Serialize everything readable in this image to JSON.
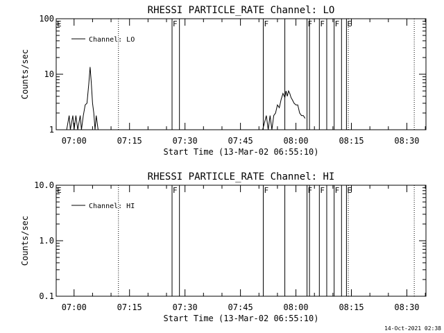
{
  "footer_timestamp": "14-Oct-2021 02:38",
  "colors": {
    "foreground": "#000000",
    "background": "#ffffff"
  },
  "chart_data": [
    {
      "type": "line",
      "title": "RHESSI PARTICLE_RATE Channel: LO",
      "xlabel": "Start Time (13-Mar-02 06:55:10)",
      "ylabel": "Counts/sec",
      "y_scale": "log",
      "ylim": [
        1,
        100
      ],
      "y_tick_labels": [
        "1",
        "10",
        "100"
      ],
      "y_tick_values": [
        1,
        10,
        100
      ],
      "xlim": [
        "06:55:10",
        "08:35:10"
      ],
      "x_tick_labels": [
        "07:00",
        "07:15",
        "07:30",
        "07:45",
        "08:00",
        "08:15",
        "08:30"
      ],
      "legend": {
        "placement": "top-left",
        "entries": [
          "Channel: LO"
        ]
      },
      "grid": false,
      "series": [
        {
          "name": "Channel: LO",
          "segments": [
            [
              [
                "06:58:00",
                1
              ],
              [
                "06:58:40",
                1.8
              ],
              [
                "06:59:00",
                1
              ],
              [
                "06:59:40",
                1.8
              ],
              [
                "07:00:00",
                1
              ],
              [
                "07:00:30",
                1.8
              ],
              [
                "07:01:00",
                1
              ],
              [
                "07:01:40",
                1.8
              ],
              [
                "07:02:00",
                1
              ],
              [
                "07:02:30",
                1.8
              ],
              [
                "07:03:00",
                2.8
              ],
              [
                "07:03:30",
                3
              ],
              [
                "07:04:00",
                7
              ],
              [
                "07:04:20",
                13.5
              ],
              [
                "07:04:40",
                7
              ],
              [
                "07:05:00",
                3
              ],
              [
                "07:05:20",
                2
              ],
              [
                "07:05:40",
                1
              ],
              [
                "07:06:00",
                1.8
              ],
              [
                "07:06:30",
                1
              ]
            ],
            [
              [
                "07:51:00",
                1
              ],
              [
                "07:52:00",
                1.8
              ],
              [
                "07:52:30",
                1
              ],
              [
                "07:53:00",
                1.8
              ],
              [
                "07:53:30",
                1
              ],
              [
                "07:54:00",
                1.8
              ],
              [
                "07:54:30",
                2
              ],
              [
                "07:55:00",
                2.8
              ],
              [
                "07:55:30",
                2.5
              ],
              [
                "07:56:00",
                3.5
              ],
              [
                "07:56:30",
                4.5
              ],
              [
                "07:57:00",
                3.8
              ],
              [
                "07:57:20",
                5
              ],
              [
                "07:57:40",
                4
              ],
              [
                "07:58:00",
                5
              ],
              [
                "07:58:20",
                4.5
              ],
              [
                "07:58:40",
                3.8
              ],
              [
                "07:59:00",
                3.5
              ],
              [
                "07:59:30",
                3
              ],
              [
                "08:00:00",
                2.8
              ],
              [
                "08:00:30",
                2.8
              ],
              [
                "08:01:00",
                2
              ],
              [
                "08:01:30",
                1.8
              ],
              [
                "08:02:00",
                1.8
              ],
              [
                "08:02:30",
                1.6
              ]
            ]
          ]
        }
      ],
      "markers": [
        {
          "time": "07:26:30",
          "label": "F"
        },
        {
          "time": "07:28:30",
          "label": ""
        },
        {
          "time": "07:51:10",
          "label": "F"
        },
        {
          "time": "07:57:00",
          "label": ""
        },
        {
          "time": "08:03:00",
          "label": "F"
        },
        {
          "time": "08:03:40",
          "label": ""
        },
        {
          "time": "08:06:20",
          "label": "F"
        },
        {
          "time": "08:08:20",
          "label": ""
        },
        {
          "time": "08:10:20",
          "label": "F"
        },
        {
          "time": "08:12:20",
          "label": ""
        },
        {
          "time": "08:13:40",
          "label": "E"
        }
      ],
      "dotted_lines": [
        "07:12:00",
        "08:14:10",
        "08:32:00"
      ],
      "corner_label": "E"
    },
    {
      "type": "line",
      "title": "RHESSI PARTICLE_RATE Channel: HI",
      "xlabel": "Start Time (13-Mar-02 06:55:10)",
      "ylabel": "Counts/sec",
      "y_scale": "log",
      "ylim": [
        0.1,
        10
      ],
      "y_tick_labels": [
        "0.1",
        "1.0",
        "10.0"
      ],
      "y_tick_values": [
        0.1,
        1,
        10
      ],
      "xlim": [
        "06:55:10",
        "08:35:10"
      ],
      "x_tick_labels": [
        "07:00",
        "07:15",
        "07:30",
        "07:45",
        "08:00",
        "08:15",
        "08:30"
      ],
      "legend": {
        "placement": "top-left",
        "entries": [
          "Channel: HI"
        ]
      },
      "grid": false,
      "series": [
        {
          "name": "Channel: HI",
          "segments": []
        }
      ],
      "markers": [
        {
          "time": "07:26:30",
          "label": "F"
        },
        {
          "time": "07:28:30",
          "label": ""
        },
        {
          "time": "07:51:10",
          "label": "F"
        },
        {
          "time": "07:57:00",
          "label": ""
        },
        {
          "time": "08:03:00",
          "label": "F"
        },
        {
          "time": "08:03:40",
          "label": ""
        },
        {
          "time": "08:06:20",
          "label": "F"
        },
        {
          "time": "08:08:20",
          "label": ""
        },
        {
          "time": "08:10:20",
          "label": "F"
        },
        {
          "time": "08:12:20",
          "label": ""
        },
        {
          "time": "08:13:40",
          "label": "E"
        }
      ],
      "dotted_lines": [
        "07:12:00",
        "08:14:10",
        "08:32:00"
      ],
      "corner_label": "E"
    }
  ]
}
